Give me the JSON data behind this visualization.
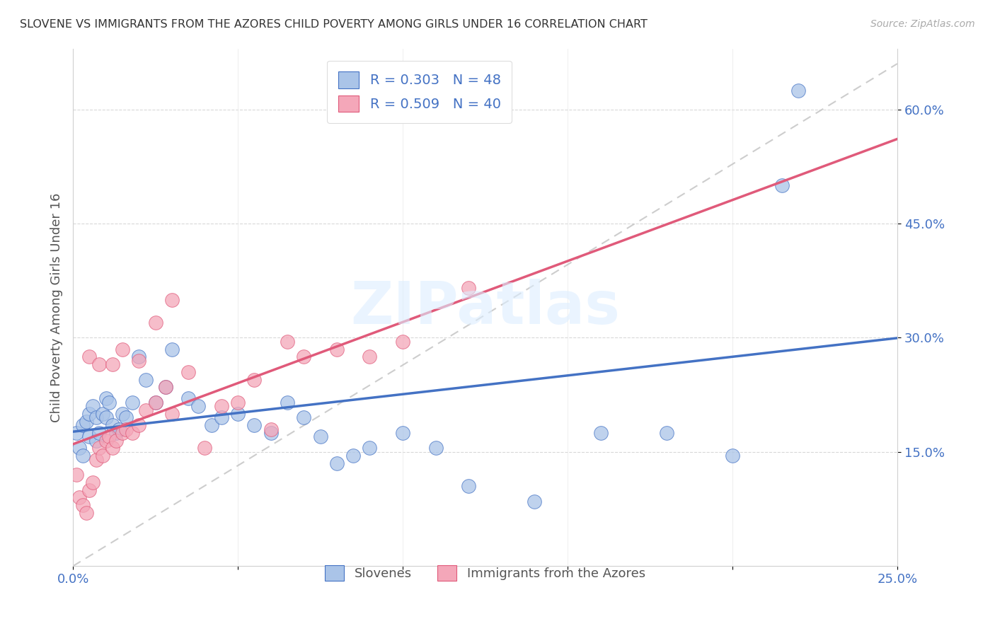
{
  "title": "SLOVENE VS IMMIGRANTS FROM THE AZORES CHILD POVERTY AMONG GIRLS UNDER 16 CORRELATION CHART",
  "source": "Source: ZipAtlas.com",
  "ylabel_label": "Child Poverty Among Girls Under 16",
  "legend_label1": "Slovenes",
  "legend_label2": "Immigrants from the Azores",
  "R1": 0.303,
  "N1": 48,
  "R2": 0.509,
  "N2": 40,
  "color1": "#aac4e8",
  "color2": "#f4a7b9",
  "line1_color": "#4472c4",
  "line2_color": "#e05a7a",
  "ref_line_color": "#c8c8c8",
  "xlim": [
    0.0,
    0.25
  ],
  "ylim": [
    0.0,
    0.68
  ],
  "xticks": [
    0.0,
    0.05,
    0.1,
    0.15,
    0.2,
    0.25
  ],
  "yticks": [
    0.15,
    0.3,
    0.45,
    0.6
  ],
  "xtick_labels": [
    "0.0%",
    "",
    "",
    "",
    "",
    "25.0%"
  ],
  "ytick_labels": [
    "15.0%",
    "30.0%",
    "45.0%",
    "60.0%"
  ],
  "title_color": "#333333",
  "axis_color": "#4472c4",
  "watermark": "ZIPatlas",
  "blue_x": [
    0.001,
    0.002,
    0.003,
    0.003,
    0.004,
    0.005,
    0.005,
    0.006,
    0.007,
    0.007,
    0.008,
    0.009,
    0.01,
    0.01,
    0.011,
    0.012,
    0.013,
    0.014,
    0.015,
    0.016,
    0.018,
    0.02,
    0.022,
    0.025,
    0.028,
    0.03,
    0.035,
    0.038,
    0.042,
    0.045,
    0.05,
    0.055,
    0.06,
    0.065,
    0.07,
    0.075,
    0.08,
    0.085,
    0.09,
    0.1,
    0.11,
    0.12,
    0.14,
    0.16,
    0.18,
    0.2,
    0.215,
    0.22
  ],
  "blue_y": [
    0.175,
    0.155,
    0.145,
    0.185,
    0.19,
    0.17,
    0.2,
    0.21,
    0.165,
    0.195,
    0.175,
    0.2,
    0.195,
    0.22,
    0.215,
    0.185,
    0.175,
    0.18,
    0.2,
    0.195,
    0.215,
    0.275,
    0.245,
    0.215,
    0.235,
    0.285,
    0.22,
    0.21,
    0.185,
    0.195,
    0.2,
    0.185,
    0.175,
    0.215,
    0.195,
    0.17,
    0.135,
    0.145,
    0.155,
    0.175,
    0.155,
    0.105,
    0.085,
    0.175,
    0.175,
    0.145,
    0.5,
    0.625
  ],
  "pink_x": [
    0.001,
    0.002,
    0.003,
    0.004,
    0.005,
    0.006,
    0.007,
    0.008,
    0.009,
    0.01,
    0.011,
    0.012,
    0.013,
    0.015,
    0.016,
    0.018,
    0.02,
    0.022,
    0.025,
    0.028,
    0.03,
    0.035,
    0.04,
    0.045,
    0.05,
    0.055,
    0.06,
    0.065,
    0.07,
    0.08,
    0.09,
    0.1,
    0.005,
    0.008,
    0.012,
    0.015,
    0.02,
    0.025,
    0.03,
    0.12
  ],
  "pink_y": [
    0.12,
    0.09,
    0.08,
    0.07,
    0.1,
    0.11,
    0.14,
    0.155,
    0.145,
    0.165,
    0.17,
    0.155,
    0.165,
    0.175,
    0.18,
    0.175,
    0.185,
    0.205,
    0.215,
    0.235,
    0.2,
    0.255,
    0.155,
    0.21,
    0.215,
    0.245,
    0.18,
    0.295,
    0.275,
    0.285,
    0.275,
    0.295,
    0.275,
    0.265,
    0.265,
    0.285,
    0.27,
    0.32,
    0.35,
    0.365
  ]
}
